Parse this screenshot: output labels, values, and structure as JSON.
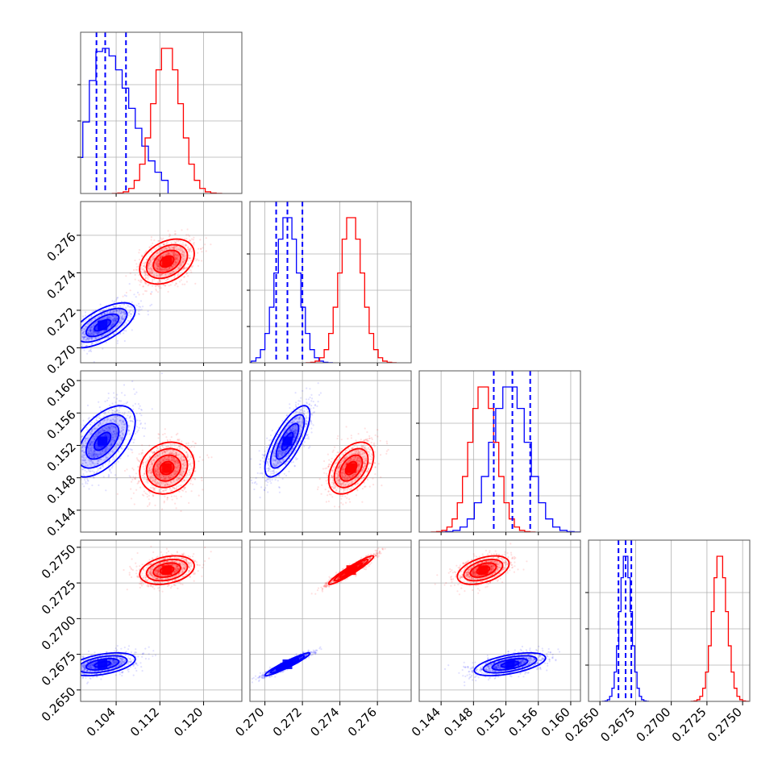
{
  "chart_data": {
    "type": "corner",
    "grid": true,
    "title": "",
    "parameters": [
      {
        "index": 0,
        "range": [
          0.0975,
          0.127
        ],
        "ticks": [
          0.104,
          0.112,
          0.12
        ],
        "tick_labels": [
          "0.104",
          "0.112",
          "0.120"
        ]
      },
      {
        "index": 1,
        "range": [
          0.2692,
          0.2778
        ],
        "ticks": [
          0.27,
          0.272,
          0.274,
          0.276
        ],
        "tick_labels": [
          "0.270",
          "0.272",
          "0.274",
          "0.276"
        ]
      },
      {
        "index": 2,
        "range": [
          0.1413,
          0.1612
        ],
        "ticks": [
          0.144,
          0.148,
          0.152,
          0.156,
          0.16
        ],
        "tick_labels": [
          "0.144",
          "0.148",
          "0.152",
          "0.156",
          "0.160"
        ]
      },
      {
        "index": 3,
        "range": [
          0.2642,
          0.2755
        ],
        "ticks": [
          0.265,
          0.2675,
          0.27,
          0.2725,
          0.275
        ],
        "tick_labels": [
          "0.2650",
          "0.2675",
          "0.2700",
          "0.2725",
          "0.2750"
        ]
      }
    ],
    "series": [
      {
        "color": "#0000ff",
        "means": [
          0.1015,
          0.2712,
          0.1525,
          0.2668
        ],
        "sds": [
          0.003,
          0.0006,
          0.0022,
          0.0004
        ],
        "correlations": {
          "0-1": 0.65,
          "0-2": 0.55,
          "1-2": 0.75,
          "0-3": 0.45,
          "1-3": 0.95,
          "2-3": 0.55
        },
        "quantile_lines": [
          [
            0.1004,
            0.102,
            0.1058
          ],
          [
            0.2706,
            0.2712,
            0.272
          ],
          [
            0.1505,
            0.1528,
            0.155
          ],
          [
            0.2663,
            0.2668,
            0.2672
          ]
        ]
      },
      {
        "color": "#ff0000",
        "means": [
          0.1133,
          0.2746,
          0.1492,
          0.2734
        ],
        "sds": [
          0.0025,
          0.0006,
          0.0016,
          0.0005
        ],
        "correlations": {
          "0-1": 0.35,
          "0-2": 0.15,
          "1-2": 0.45,
          "0-3": 0.3,
          "1-3": 0.95,
          "2-3": 0.45
        },
        "quantile_lines": null
      }
    ],
    "histogram_bins": 20,
    "contour_levels_sigma": [
      0.5,
      1.0,
      1.5,
      2.0
    ]
  }
}
